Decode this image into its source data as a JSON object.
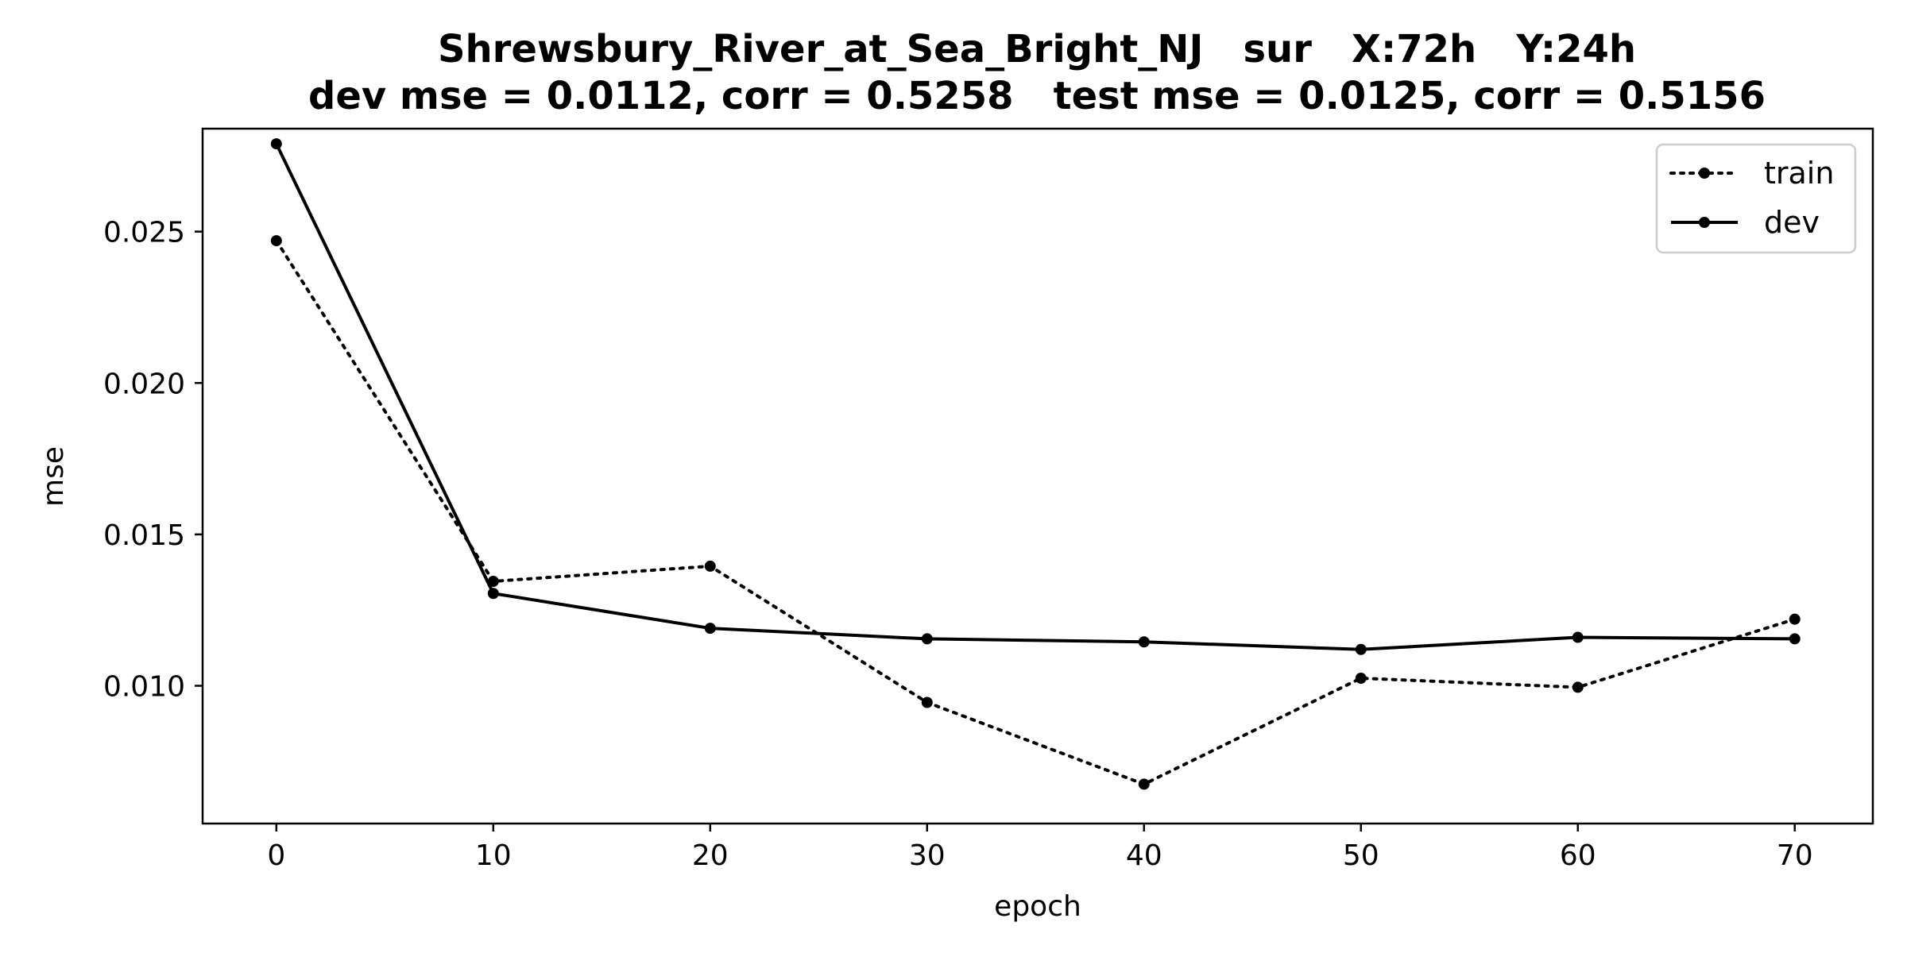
{
  "chart_data": {
    "type": "line",
    "title_line1": "Shrewsbury_River_at_Sea_Bright_NJ   sur   X:72h   Y:24h",
    "title_line2": "dev mse = 0.0112, corr = 0.5258   test mse = 0.0125, corr = 0.5156",
    "xlabel": "epoch",
    "ylabel": "mse",
    "x": [
      0,
      10,
      20,
      30,
      40,
      50,
      60,
      70
    ],
    "xticks": [
      0,
      10,
      20,
      30,
      40,
      50,
      60,
      70
    ],
    "xtick_labels": [
      "0",
      "10",
      "20",
      "30",
      "40",
      "50",
      "60",
      "70"
    ],
    "yticks": [
      0.01,
      0.015,
      0.02,
      0.025
    ],
    "ytick_labels": [
      "0.010",
      "0.015",
      "0.020",
      "0.025"
    ],
    "xlim": [
      -3.4,
      73.6
    ],
    "ylim": [
      0.00545,
      0.0284
    ],
    "grid": false,
    "legend_position": "top-right",
    "series": [
      {
        "name": "train",
        "linestyle": "dotted",
        "color": "#000000",
        "values": [
          0.0247,
          0.01345,
          0.01395,
          0.00945,
          0.00675,
          0.01025,
          0.00995,
          0.0122
        ]
      },
      {
        "name": "dev",
        "linestyle": "solid",
        "color": "#000000",
        "values": [
          0.0279,
          0.01305,
          0.0119,
          0.01155,
          0.01145,
          0.0112,
          0.0116,
          0.01155
        ]
      }
    ]
  }
}
